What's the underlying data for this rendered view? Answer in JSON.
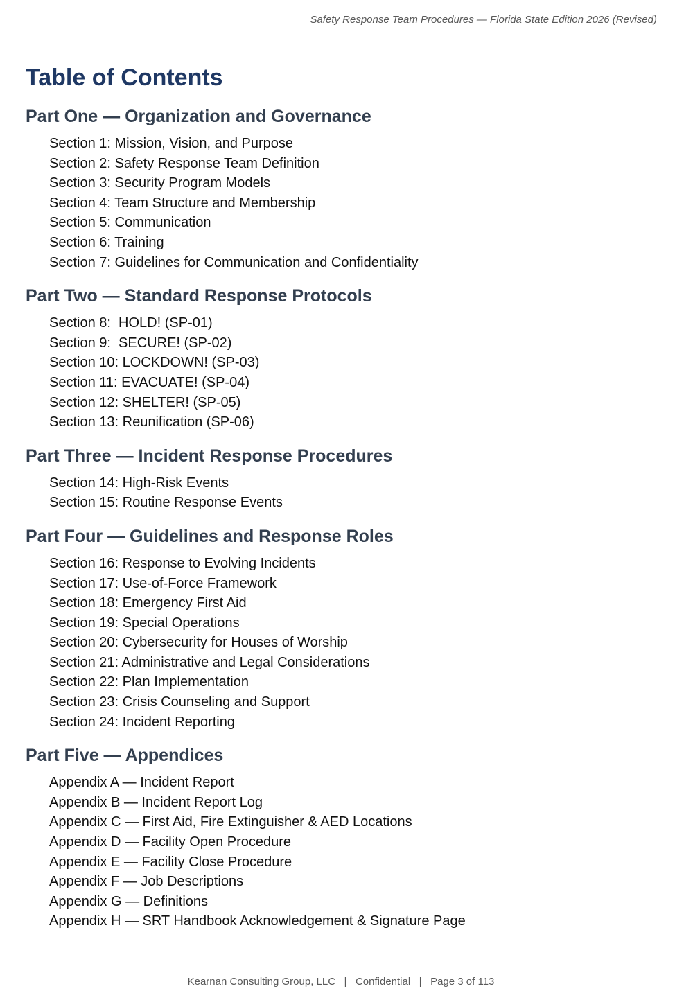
{
  "header": "Safety Response Team Procedures — Florida State Edition 2026 (Revised)",
  "title": "Table of Contents",
  "parts": [
    {
      "heading": "Part One — Organization and Governance",
      "items": [
        "Section 1: Mission, Vision, and Purpose",
        "Section 2: Safety Response Team Definition",
        "Section 3: Security Program Models",
        "Section 4: Team Structure and Membership",
        "Section 5: Communication",
        "Section 6: Training",
        "Section 7: Guidelines for Communication and Confidentiality"
      ]
    },
    {
      "heading": "Part Two — Standard Response Protocols",
      "items": [
        "Section 8:  HOLD! (SP-01)",
        "Section 9:  SECURE! (SP-02)",
        "Section 10: LOCKDOWN! (SP-03)",
        "Section 11: EVACUATE! (SP-04)",
        "Section 12: SHELTER! (SP-05)",
        "Section 13: Reunification (SP-06)"
      ]
    },
    {
      "heading": "Part Three — Incident Response Procedures",
      "items": [
        "Section 14: High-Risk Events",
        "Section 15: Routine Response Events"
      ]
    },
    {
      "heading": "Part Four — Guidelines and Response Roles",
      "items": [
        "Section 16: Response to Evolving Incidents",
        "Section 17: Use-of-Force Framework",
        "Section 18: Emergency First Aid",
        "Section 19: Special Operations",
        "Section 20: Cybersecurity for Houses of Worship",
        "Section 21: Administrative and Legal Considerations",
        "Section 22: Plan Implementation",
        "Section 23: Crisis Counseling and Support",
        "Section 24: Incident Reporting"
      ]
    },
    {
      "heading": "Part Five — Appendices",
      "items": [
        "Appendix A — Incident Report",
        "Appendix B — Incident Report Log",
        "Appendix C — First Aid, Fire Extinguisher & AED Locations",
        "Appendix D — Facility Open Procedure",
        "Appendix E — Facility Close Procedure",
        "Appendix F — Job Descriptions",
        "Appendix G — Definitions",
        "Appendix H — SRT Handbook Acknowledgement & Signature Page"
      ]
    }
  ],
  "footer": "Kearnan Consulting Group, LLC   |   Confidential   |   Page 3 of 113",
  "colors": {
    "title": "#1f3864",
    "part_heading": "#333f4f",
    "text": "#111111",
    "header_footer": "#595959"
  }
}
